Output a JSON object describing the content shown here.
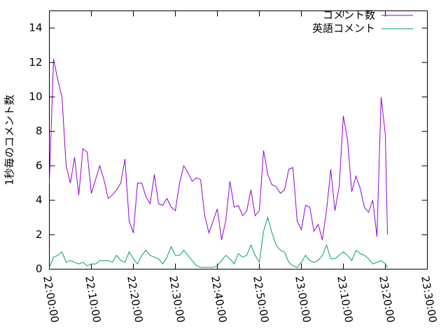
{
  "chart_data": {
    "type": "line",
    "ylabel": "1秒毎のコメント数",
    "x": [
      "22:00:00",
      "22:01:00",
      "22:02:00",
      "22:03:00",
      "22:04:00",
      "22:05:00",
      "22:06:00",
      "22:07:00",
      "22:08:00",
      "22:09:00",
      "22:10:00",
      "22:11:00",
      "22:12:00",
      "22:13:00",
      "22:14:00",
      "22:15:00",
      "22:16:00",
      "22:17:00",
      "22:18:00",
      "22:19:00",
      "22:20:00",
      "22:21:00",
      "22:22:00",
      "22:23:00",
      "22:24:00",
      "22:25:00",
      "22:26:00",
      "22:27:00",
      "22:28:00",
      "22:29:00",
      "22:30:00",
      "22:31:00",
      "22:32:00",
      "22:33:00",
      "22:34:00",
      "22:35:00",
      "22:36:00",
      "22:37:00",
      "22:38:00",
      "22:39:00",
      "22:40:00",
      "22:41:00",
      "22:42:00",
      "22:43:00",
      "22:44:00",
      "22:45:00",
      "22:46:00",
      "22:47:00",
      "22:48:00",
      "22:49:00",
      "22:50:00",
      "22:51:00",
      "22:52:00",
      "22:53:00",
      "22:54:00",
      "22:55:00",
      "22:56:00",
      "22:57:00",
      "22:58:00",
      "22:59:00",
      "23:00:00",
      "23:01:00",
      "23:02:00",
      "23:03:00",
      "23:04:00",
      "23:05:00",
      "23:06:00",
      "23:07:00",
      "23:08:00",
      "23:09:00",
      "23:10:00",
      "23:11:00",
      "23:12:00",
      "23:13:00",
      "23:14:00",
      "23:15:00",
      "23:16:00",
      "23:17:00",
      "23:18:00",
      "23:19:00",
      "23:20:00",
      "23:20:30"
    ],
    "series": [
      {
        "name": "コメント数",
        "color": "#9400d3",
        "values": [
          5,
          12.2,
          11,
          10,
          6,
          5,
          6.5,
          4.3,
          7,
          6.8,
          4.4,
          5.2,
          6,
          5.2,
          4.1,
          4.3,
          4.6,
          5,
          6.4,
          2.8,
          2.1,
          5,
          5,
          4.2,
          3.8,
          5.5,
          3.8,
          3.7,
          4.1,
          3.6,
          3.4,
          5,
          6,
          5.6,
          5.1,
          5.3,
          5.2,
          3.1,
          2.1,
          2.8,
          3.5,
          1.7,
          2.8,
          5.1,
          3.6,
          3.7,
          3.1,
          3.4,
          4.6,
          3.1,
          3.4,
          6.9,
          5.5,
          4.9,
          4.8,
          4.4,
          4.6,
          5.8,
          5.9,
          2.8,
          2.3,
          3.7,
          3.6,
          2.2,
          2.6,
          1.7,
          3.4,
          5.8,
          3.4,
          4.8,
          8.9,
          7.5,
          4.5,
          5.4,
          4.7,
          3.6,
          3.3,
          4.0,
          1.9,
          10,
          7.8,
          2.0
        ]
      },
      {
        "name": "英語コメント",
        "color": "#009e73",
        "values": [
          0.1,
          0.7,
          0.8,
          1.0,
          0.4,
          0.5,
          0.4,
          0.3,
          0.4,
          0.2,
          0.3,
          0.3,
          0.5,
          0.5,
          0.5,
          0.4,
          0.8,
          0.5,
          0.4,
          1.0,
          0.6,
          0.3,
          0.8,
          1.1,
          0.8,
          0.7,
          0.6,
          0.3,
          0.7,
          1.3,
          0.8,
          0.8,
          1.1,
          0.8,
          0.5,
          0.2,
          0.1,
          0.1,
          0.1,
          0.1,
          0.2,
          0.5,
          0.8,
          0.6,
          0.3,
          0.9,
          0.7,
          0.8,
          1.4,
          0.8,
          0.4,
          2.2,
          3.0,
          2.1,
          1.4,
          1.1,
          1.0,
          0.4,
          0.2,
          0.1,
          0.4,
          0.8,
          0.5,
          0.4,
          0.5,
          0.8,
          1.4,
          0.6,
          0.6,
          0.8,
          1.0,
          0.8,
          0.5,
          1.1,
          0.9,
          0.8,
          0.6,
          0.3,
          0.4,
          0.5,
          0.3,
          0.1
        ]
      }
    ],
    "xlim": [
      "22:00:00",
      "23:30:00"
    ],
    "xticks": [
      "22:00:00",
      "22:10:00",
      "22:20:00",
      "22:30:00",
      "22:40:00",
      "22:50:00",
      "23:00:00",
      "23:10:00",
      "23:20:00",
      "23:30:00"
    ],
    "ylim": [
      0,
      15
    ],
    "yticks": [
      0,
      2,
      4,
      6,
      8,
      10,
      12,
      14
    ],
    "legend": "top-right"
  }
}
